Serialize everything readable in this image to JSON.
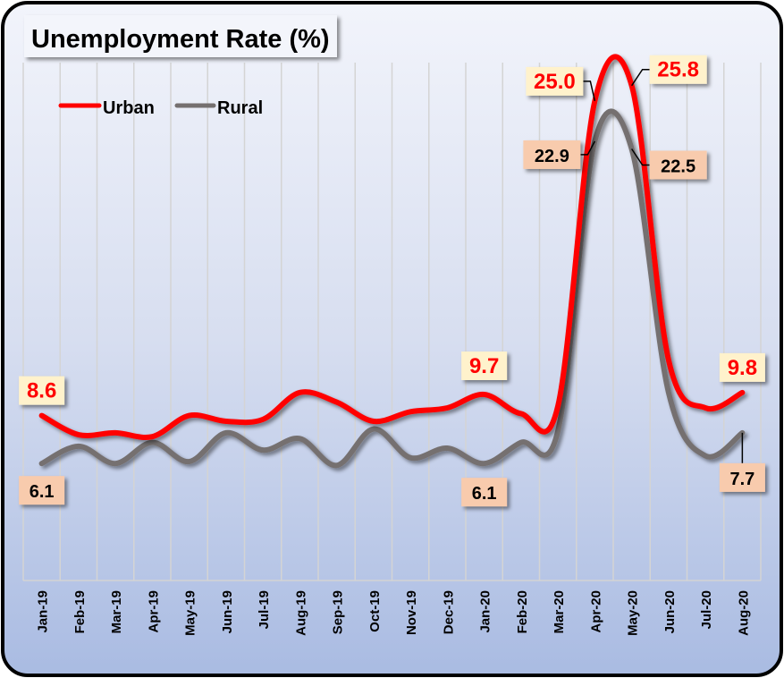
{
  "chart_data": {
    "type": "line",
    "title": "Unemployment Rate (%)",
    "xlabel": "",
    "ylabel": "",
    "ylim": [
      0,
      27
    ],
    "grid": "vertical",
    "legend_position": "top-left",
    "categories": [
      "Jan-19",
      "Feb-19",
      "Mar-19",
      "Apr-19",
      "May-19",
      "Jun-19",
      "Jul-19",
      "Aug-19",
      "Sep-19",
      "Oct-19",
      "Nov-19",
      "Dec-19",
      "Jan-20",
      "Feb-20",
      "Mar-20",
      "Apr-20",
      "May-20",
      "Jun-20",
      "Jul-20",
      "Aug-20"
    ],
    "series": [
      {
        "name": "Urban",
        "color": "#ff0000",
        "values": [
          8.6,
          7.6,
          7.7,
          7.5,
          8.6,
          8.3,
          8.4,
          9.8,
          9.3,
          8.3,
          8.8,
          9.0,
          9.7,
          8.7,
          9.1,
          25.0,
          25.8,
          11.5,
          9.0,
          9.8
        ],
        "data_labels": {
          "0": "8.6",
          "12": "9.7",
          "15": "25.0",
          "16": "25.8",
          "19": "9.8"
        }
      },
      {
        "name": "Rural",
        "color": "#757070",
        "values": [
          6.1,
          7.0,
          6.1,
          7.2,
          6.2,
          7.7,
          6.8,
          7.4,
          6.0,
          7.9,
          6.4,
          6.9,
          6.1,
          7.2,
          7.8,
          22.9,
          22.5,
          9.8,
          6.5,
          7.7
        ],
        "data_labels": {
          "0": "6.1",
          "12": "6.1",
          "15": "22.9",
          "16": "22.5",
          "19": "7.7"
        }
      }
    ]
  }
}
